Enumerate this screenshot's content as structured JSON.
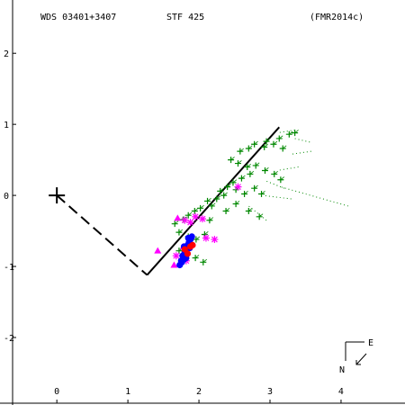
{
  "header": {
    "star_id": "WDS 03401+3407",
    "discoverer": "STF 425",
    "orbit_ref": "(FMR2014c)"
  },
  "compass": {
    "north_label": "N",
    "east_label": "E"
  },
  "colors": {
    "axes": "#000000",
    "orbit": "#000000",
    "micrometric": "#008800",
    "speckle": "#0000ff",
    "interferometric": "#ff0000",
    "other": "#ff00ff"
  },
  "chart_data": {
    "type": "scatter",
    "title": "",
    "xlabel": "",
    "ylabel": "",
    "xlim": [
      -0.8,
      4.9
    ],
    "ylim": [
      -2.95,
      2.75
    ],
    "x_ticks": [
      0,
      1,
      2,
      3,
      4
    ],
    "y_ticks": [
      -2,
      -1,
      0,
      1,
      2
    ],
    "primary": {
      "x": 0,
      "y": 0
    },
    "orbit_line": [
      [
        1.27,
        -1.12
      ],
      [
        3.13,
        0.96
      ]
    ],
    "node_line": [
      [
        0,
        0
      ],
      [
        1.27,
        -1.12
      ]
    ],
    "series": [
      {
        "marker": "plus",
        "color": "#008800",
        "points": [
          [
            3.27,
            0.86
          ],
          [
            3.35,
            0.88
          ],
          [
            3.13,
            0.8
          ],
          [
            2.95,
            0.76
          ],
          [
            2.78,
            0.72
          ],
          [
            2.92,
            0.68
          ],
          [
            3.05,
            0.72
          ],
          [
            3.18,
            0.66
          ],
          [
            2.7,
            0.66
          ],
          [
            2.58,
            0.62
          ],
          [
            2.45,
            0.5
          ],
          [
            2.55,
            0.45
          ],
          [
            2.68,
            0.4
          ],
          [
            2.8,
            0.42
          ],
          [
            2.93,
            0.35
          ],
          [
            3.06,
            0.3
          ],
          [
            3.15,
            0.22
          ],
          [
            2.72,
            0.3
          ],
          [
            2.6,
            0.24
          ],
          [
            2.48,
            0.18
          ],
          [
            2.4,
            0.12
          ],
          [
            2.3,
            0.06
          ],
          [
            2.52,
            0.08
          ],
          [
            2.64,
            0.02
          ],
          [
            2.78,
            0.1
          ],
          [
            2.88,
            0.02
          ],
          [
            2.35,
            0.0
          ],
          [
            2.25,
            -0.05
          ],
          [
            2.12,
            -0.08
          ],
          [
            2.18,
            -0.15
          ],
          [
            2.02,
            -0.18
          ],
          [
            1.94,
            -0.22
          ],
          [
            1.85,
            -0.28
          ],
          [
            1.78,
            -0.34
          ],
          [
            1.66,
            -0.4
          ],
          [
            1.72,
            -0.52
          ],
          [
            1.85,
            -0.58
          ],
          [
            1.96,
            -0.62
          ],
          [
            2.08,
            -0.55
          ],
          [
            2.15,
            -0.35
          ],
          [
            2.38,
            -0.22
          ],
          [
            2.52,
            -0.12
          ],
          [
            2.7,
            -0.22
          ],
          [
            2.85,
            -0.3
          ],
          [
            1.82,
            -0.85
          ],
          [
            1.95,
            -0.88
          ],
          [
            2.06,
            -0.94
          ],
          [
            1.72,
            -0.78
          ]
        ],
        "spokes": [
          [
            [
              3.56,
              0.75
            ],
            [
              3.35,
              0.8
            ]
          ],
          [
            [
              3.58,
              0.62
            ],
            [
              3.3,
              0.58
            ]
          ],
          [
            [
              3.4,
              0.4
            ],
            [
              3.1,
              0.35
            ]
          ],
          [
            [
              3.2,
              0.1
            ],
            [
              2.95,
              0.2
            ]
          ],
          [
            [
              4.1,
              -0.15
            ],
            [
              3.15,
              0.12
            ]
          ],
          [
            [
              3.3,
              -0.05
            ],
            [
              2.9,
              0.0
            ]
          ],
          [
            [
              3.35,
              0.92
            ],
            [
              3.1,
              0.88
            ]
          ],
          [
            [
              2.95,
              -0.35
            ],
            [
              2.7,
              -0.15
            ]
          ]
        ]
      },
      {
        "marker": "asterisk",
        "color": "#ff00ff",
        "points": [
          [
            1.8,
            -0.35
          ],
          [
            1.88,
            -0.38
          ],
          [
            1.95,
            -0.3
          ],
          [
            2.05,
            -0.33
          ],
          [
            2.22,
            -0.62
          ],
          [
            2.1,
            -0.6
          ],
          [
            1.82,
            -0.92
          ],
          [
            2.55,
            0.12
          ],
          [
            1.68,
            -0.85
          ]
        ]
      },
      {
        "marker": "triangle",
        "color": "#ff00ff",
        "points": [
          [
            1.42,
            -0.78
          ],
          [
            1.65,
            -0.98
          ],
          [
            1.78,
            -0.72
          ],
          [
            1.7,
            -0.32
          ]
        ]
      },
      {
        "marker": "filled-circle",
        "color": "#0000ff",
        "points": [
          [
            1.73,
            -0.98
          ],
          [
            1.76,
            -0.94
          ],
          [
            1.79,
            -0.9
          ],
          [
            1.77,
            -0.85
          ],
          [
            1.8,
            -0.8
          ],
          [
            1.82,
            -0.76
          ],
          [
            1.79,
            -0.72
          ],
          [
            1.84,
            -0.7
          ],
          [
            1.86,
            -0.66
          ],
          [
            1.88,
            -0.62
          ],
          [
            1.85,
            -0.6
          ],
          [
            1.9,
            -0.58
          ],
          [
            1.75,
            -0.92
          ],
          [
            1.82,
            -0.88
          ],
          [
            1.87,
            -0.74
          ]
        ]
      },
      {
        "marker": "filled-circle",
        "color": "#ff0000",
        "points": [
          [
            1.8,
            -0.76
          ],
          [
            1.88,
            -0.72
          ],
          [
            1.91,
            -0.7
          ],
          [
            1.84,
            -0.82
          ]
        ]
      }
    ]
  }
}
